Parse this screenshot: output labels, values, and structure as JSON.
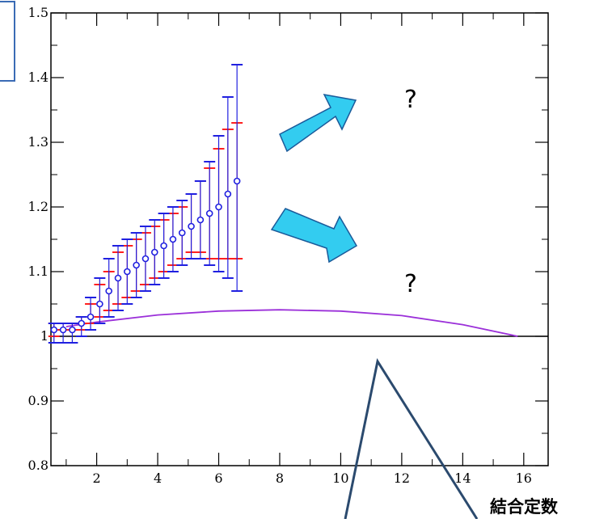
{
  "chart_data": {
    "type": "scatter",
    "title": "",
    "xlabel": "",
    "ylabel": "",
    "xlim": [
      0.5,
      16.8
    ],
    "ylim": [
      0.8,
      1.5
    ],
    "x_ticks": [
      2,
      4,
      6,
      8,
      10,
      12,
      14,
      16
    ],
    "y_ticks": [
      0.8,
      0.9,
      1,
      1.1,
      1.2,
      1.3,
      1.4,
      1.5
    ],
    "y_tick_labels": [
      "0.8",
      "0.9",
      "1",
      "1.1",
      "1.2",
      "1.3",
      "1.4",
      "1.5"
    ],
    "reference_line_y": 1,
    "grid": false,
    "series": [
      {
        "kind": "errorbar",
        "color": "#ff2020",
        "x": [
          0.6,
          0.9,
          1.2,
          1.5,
          1.8,
          2.1,
          2.4,
          2.7,
          3.0,
          3.3,
          3.6,
          3.9,
          4.2,
          4.5,
          4.8,
          5.1,
          5.4,
          5.7,
          6.0,
          6.3,
          6.6
        ],
        "upper": [
          1.02,
          1.02,
          1.02,
          1.03,
          1.05,
          1.08,
          1.1,
          1.13,
          1.14,
          1.15,
          1.16,
          1.17,
          1.18,
          1.19,
          1.2,
          1.22,
          1.24,
          1.26,
          1.29,
          1.32,
          1.33
        ],
        "lower": [
          1.0,
          1.01,
          1.01,
          1.01,
          1.02,
          1.03,
          1.04,
          1.05,
          1.06,
          1.07,
          1.08,
          1.09,
          1.1,
          1.11,
          1.12,
          1.13,
          1.13,
          1.12,
          1.12,
          1.12,
          1.12
        ]
      },
      {
        "kind": "errorbar",
        "color": "#2020e0",
        "x": [
          0.6,
          0.9,
          1.2,
          1.5,
          1.8,
          2.1,
          2.4,
          2.7,
          3.0,
          3.3,
          3.6,
          3.9,
          4.2,
          4.5,
          4.8,
          5.1,
          5.4,
          5.7,
          6.0,
          6.3,
          6.6
        ],
        "upper": [
          1.02,
          1.02,
          1.02,
          1.03,
          1.06,
          1.09,
          1.12,
          1.14,
          1.15,
          1.16,
          1.17,
          1.18,
          1.19,
          1.2,
          1.21,
          1.22,
          1.24,
          1.27,
          1.31,
          1.37,
          1.42
        ],
        "lower": [
          0.99,
          0.99,
          0.99,
          1.0,
          1.01,
          1.02,
          1.03,
          1.04,
          1.05,
          1.06,
          1.07,
          1.08,
          1.09,
          1.1,
          1.11,
          1.12,
          1.12,
          1.11,
          1.1,
          1.09,
          1.07
        ]
      },
      {
        "kind": "points",
        "color": "#2020e0",
        "x": [
          0.6,
          0.9,
          1.2,
          1.5,
          1.8,
          2.1,
          2.4,
          2.7,
          3.0,
          3.3,
          3.6,
          3.9,
          4.2,
          4.5,
          4.8,
          5.1,
          5.4,
          5.7,
          6.0,
          6.3,
          6.6
        ],
        "y": [
          1.01,
          1.01,
          1.01,
          1.02,
          1.03,
          1.05,
          1.07,
          1.09,
          1.1,
          1.11,
          1.12,
          1.13,
          1.14,
          1.15,
          1.16,
          1.17,
          1.18,
          1.19,
          1.2,
          1.22,
          1.24
        ]
      },
      {
        "kind": "curve",
        "color": "#9b30d9",
        "x": [
          1.0,
          2.0,
          4.0,
          6.0,
          8.0,
          10.0,
          12.0,
          14.0,
          15.8
        ],
        "y": [
          1.015,
          1.022,
          1.033,
          1.039,
          1.041,
          1.039,
          1.032,
          1.018,
          1.0
        ]
      }
    ],
    "annotations": {
      "question_mark": "?",
      "callout_label": "結合定数"
    }
  },
  "colors": {
    "arrow_fill": "#33ccf0",
    "arrow_stroke": "#1a5a9a",
    "callout_line": "#2b4a6e",
    "frame_accent": "#3a6bb5"
  }
}
